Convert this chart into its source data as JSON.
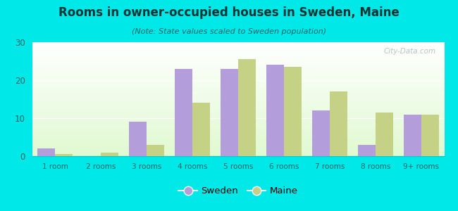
{
  "title": "Rooms in owner-occupied houses in Sweden, Maine",
  "subtitle": "(Note: State values scaled to Sweden population)",
  "categories": [
    "1 room",
    "2 rooms",
    "3 rooms",
    "4 rooms",
    "5 rooms",
    "6 rooms",
    "7 rooms",
    "8 rooms",
    "9+ rooms"
  ],
  "sweden_values": [
    2.0,
    0.0,
    9.0,
    23.0,
    23.0,
    24.0,
    12.0,
    3.0,
    11.0
  ],
  "maine_values": [
    0.5,
    1.0,
    3.0,
    14.0,
    25.5,
    23.5,
    17.0,
    11.5,
    11.0
  ],
  "sweden_color": "#b39ddb",
  "maine_color": "#c5d185",
  "background_color": "#00e8e8",
  "ylabel_max": 30,
  "yticks": [
    0,
    10,
    20,
    30
  ],
  "legend_sweden": "Sweden",
  "legend_maine": "Maine",
  "bar_width": 0.38,
  "watermark": "City-Data.com",
  "title_color": "#003333",
  "subtitle_color": "#006666",
  "tick_color": "#006666",
  "bottom_line_color": "#00cccc"
}
